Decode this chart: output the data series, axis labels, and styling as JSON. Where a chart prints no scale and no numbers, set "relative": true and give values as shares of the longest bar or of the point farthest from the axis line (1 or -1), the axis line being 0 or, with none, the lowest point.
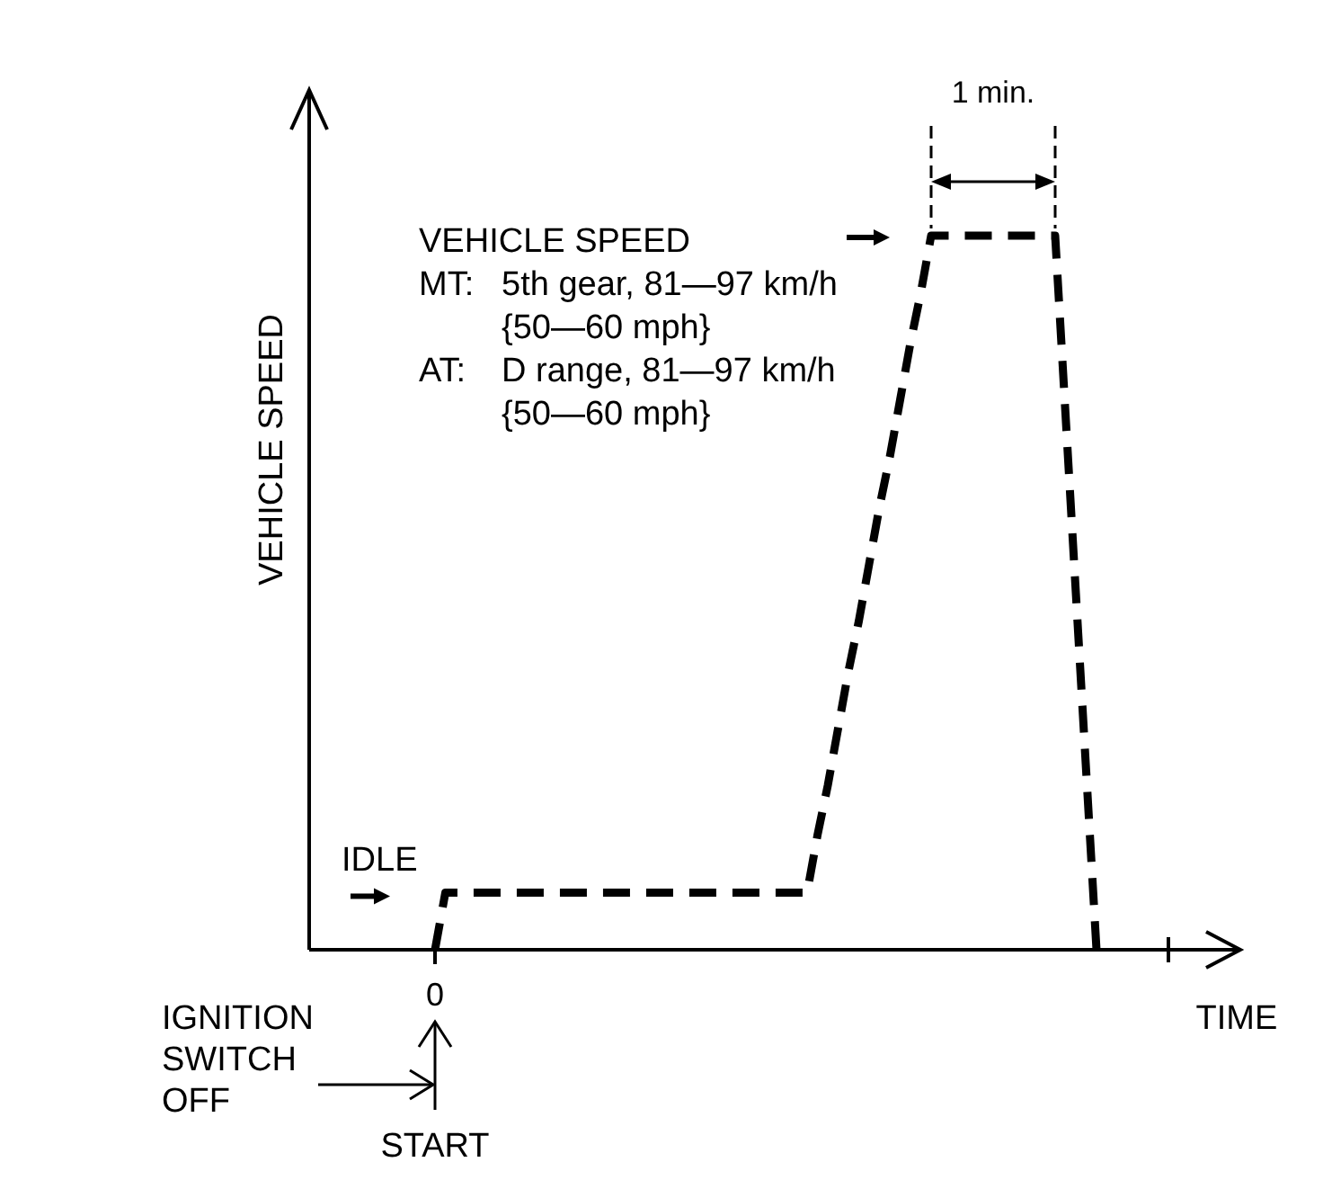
{
  "chart_data": {
    "type": "line",
    "xlabel": "TIME",
    "ylabel": "VEHICLE SPEED",
    "relative": true,
    "line_style": "dashed",
    "categories": [
      null,
      null,
      null,
      null,
      null,
      null,
      null,
      null,
      null,
      null,
      null,
      null,
      null,
      null,
      null,
      null,
      null,
      null,
      null,
      null,
      null,
      null,
      null,
      null,
      null,
      null,
      null,
      null,
      null,
      null,
      null,
      null,
      null,
      null,
      null,
      null,
      null,
      null,
      null,
      null,
      null,
      null,
      null,
      null,
      null,
      null,
      null,
      null,
      null,
      null,
      null,
      null,
      null,
      null,
      null,
      null,
      null,
      null,
      null,
      null,
      null,
      null,
      null,
      null,
      null
    ],
    "series": [
      {
        "color": "#000000",
        "values": [
          0,
          0.08,
          0.08,
          0.08,
          0.08,
          0.08,
          0.08,
          0.08,
          0.08,
          0.08,
          0.08,
          0.08,
          0.08,
          0.08,
          0.08,
          0.08,
          0.08,
          0.08,
          0.08,
          0.08,
          0.08,
          0.08,
          0.08,
          0.08,
          0.08,
          0.08,
          0.08,
          0.08,
          0.08,
          0.08,
          0.08,
          0.08,
          0.08,
          0.08,
          0.08,
          0.08,
          0.08,
          0.16,
          0.23,
          0.31,
          0.39,
          0.46,
          0.54,
          0.62,
          0.69,
          0.77,
          0.85,
          0.92,
          1,
          1,
          1,
          1,
          1,
          1,
          1,
          1,
          1,
          1,
          1,
          1,
          1,
          0.75,
          0.5,
          0.25,
          0
        ]
      }
    ],
    "annotations": [
      "VEHICLE SPEED",
      "MT: 5th gear, 81—97 km/h",
      "{50—60 mph}",
      "AT: D range, 81—97 km/h",
      "{50—60 mph}",
      "1 min.",
      "IDLE",
      "IGNITION SWITCH OFF",
      "START",
      "0"
    ]
  }
}
